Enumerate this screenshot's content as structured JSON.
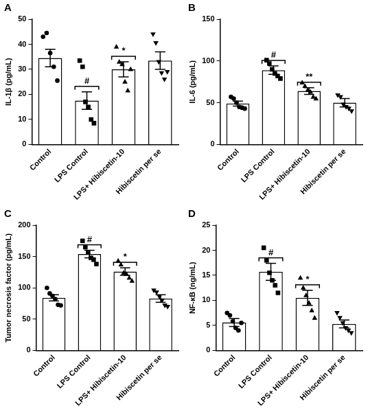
{
  "chart_data": [
    {
      "type": "bar",
      "title": "A",
      "y_label": "IL-1β (pg/mL)",
      "color": "#000000",
      "grid": false,
      "categories": [
        "Control",
        "LPS Control",
        "LPS+ Hibiscetin-10",
        "Hibiscetin per se"
      ],
      "values": [
        34.5,
        17.5,
        30,
        33.5
      ],
      "errors": [
        3.5,
        3.5,
        3,
        3.5
      ],
      "points": [
        {
          "marker": "circle",
          "values": [
            43,
            44.5,
            36.5,
            31,
            25.5
          ]
        },
        {
          "marker": "square",
          "values": [
            33.5,
            31,
            17,
            15,
            10,
            8.5
          ]
        },
        {
          "marker": "triangle",
          "values": [
            39,
            33,
            32,
            25,
            21.5,
            30
          ]
        },
        {
          "marker": "triangle-down",
          "values": [
            44,
            40.5,
            33,
            28.5,
            26,
            29
          ]
        }
      ],
      "annotations": [
        {
          "category": "LPS Control",
          "label": "#"
        },
        {
          "category": "LPS+ Hibiscetin-10",
          "label": "*"
        }
      ],
      "ylim": [
        0,
        50
      ],
      "yticks": [
        0,
        10,
        20,
        30,
        40,
        50
      ]
    },
    {
      "type": "bar",
      "title": "B",
      "y_label": "IL-6 (pg/mL)",
      "color": "#000000",
      "grid": false,
      "categories": [
        "Control",
        "LPS Control",
        "LPS+ Hibiscetin-10",
        "Hibiscetin per se"
      ],
      "values": [
        49,
        89,
        64,
        50
      ],
      "errors": [
        3,
        5,
        4,
        5
      ],
      "points": [
        {
          "marker": "circle",
          "values": [
            57,
            55,
            50,
            45,
            44,
            43
          ]
        },
        {
          "marker": "square",
          "values": [
            101,
            97,
            90,
            85,
            82,
            79
          ]
        },
        {
          "marker": "triangle",
          "values": [
            74,
            70,
            65,
            63,
            57,
            55
          ]
        },
        {
          "marker": "triangle-down",
          "values": [
            59,
            57,
            48,
            45,
            43,
            40
          ]
        }
      ],
      "annotations": [
        {
          "category": "LPS Control",
          "label": "#"
        },
        {
          "category": "LPS+ Hibiscetin-10",
          "label": "**"
        }
      ],
      "ylim": [
        0,
        150
      ],
      "yticks": [
        0,
        50,
        100,
        150
      ]
    },
    {
      "type": "bar",
      "title": "C",
      "y_label": "Tumor necrosis factor (pg/mL)",
      "color": "#000000",
      "grid": false,
      "categories": [
        "Control",
        "LPS Control",
        "LPS+ Hibiscetin-10",
        "Hibiscetin per se"
      ],
      "values": [
        84,
        154,
        126,
        83
      ],
      "errors": [
        5,
        6,
        6,
        6
      ],
      "points": [
        {
          "marker": "circle",
          "values": [
            100,
            91,
            87,
            82,
            73,
            72
          ]
        },
        {
          "marker": "square",
          "values": [
            175,
            165,
            157,
            148,
            145,
            138
          ]
        },
        {
          "marker": "triangle",
          "values": [
            143,
            137,
            124,
            122,
            116,
            111
          ]
        },
        {
          "marker": "triangle-down",
          "values": [
            96,
            93,
            86,
            80,
            72,
            70
          ]
        }
      ],
      "annotations": [
        {
          "category": "LPS Control",
          "label": "#"
        },
        {
          "category": "LPS+ Hibiscetin-10",
          "label": "*"
        }
      ],
      "ylim": [
        0,
        200
      ],
      "yticks": [
        0,
        50,
        100,
        150,
        200
      ]
    },
    {
      "type": "bar",
      "title": "D",
      "y_label": "NF-κB (ng/mL)",
      "color": "#000000",
      "grid": false,
      "categories": [
        "Control",
        "LPS Control",
        "LPS+ Hibiscetin-10",
        "Hibiscetin per se"
      ],
      "values": [
        5.6,
        15.7,
        10.5,
        5.3
      ],
      "errors": [
        0.8,
        1.7,
        1.5,
        0.8
      ],
      "points": [
        {
          "marker": "circle",
          "values": [
            7.5,
            7,
            5.8,
            4.5,
            4,
            5.5
          ]
        },
        {
          "marker": "square",
          "values": [
            20.5,
            18,
            15.5,
            14,
            13,
            11.5
          ]
        },
        {
          "marker": "triangle",
          "values": [
            14.5,
            12.5,
            11,
            9.5,
            8,
            6.5
          ]
        },
        {
          "marker": "triangle-down",
          "values": [
            7.5,
            6.5,
            5.5,
            4.5,
            4,
            3.5
          ]
        }
      ],
      "annotations": [
        {
          "category": "LPS Control",
          "label": "#"
        },
        {
          "category": "LPS+ Hibiscetin-10",
          "label": "*"
        }
      ],
      "ylim": [
        0,
        25
      ],
      "yticks": [
        0,
        5,
        10,
        15,
        20,
        25
      ]
    }
  ]
}
